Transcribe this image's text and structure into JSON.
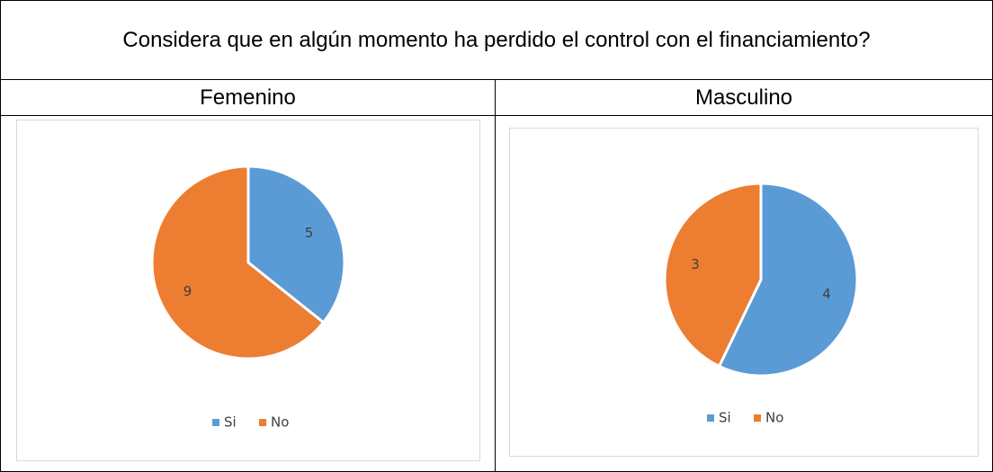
{
  "table": {
    "title": "Considera que en algún momento ha perdido el control con el financiamiento?",
    "headers": [
      "Femenino",
      "Masculino"
    ]
  },
  "chart_data": [
    {
      "type": "pie",
      "categories": [
        "Si",
        "No"
      ],
      "values": [
        5,
        9
      ],
      "colors": [
        "#5b9bd5",
        "#ed7d31"
      ],
      "legend": "bottom"
    },
    {
      "type": "pie",
      "categories": [
        "Si",
        "No"
      ],
      "values": [
        4,
        3
      ],
      "colors": [
        "#5b9bd5",
        "#ed7d31"
      ],
      "legend": "bottom"
    }
  ]
}
